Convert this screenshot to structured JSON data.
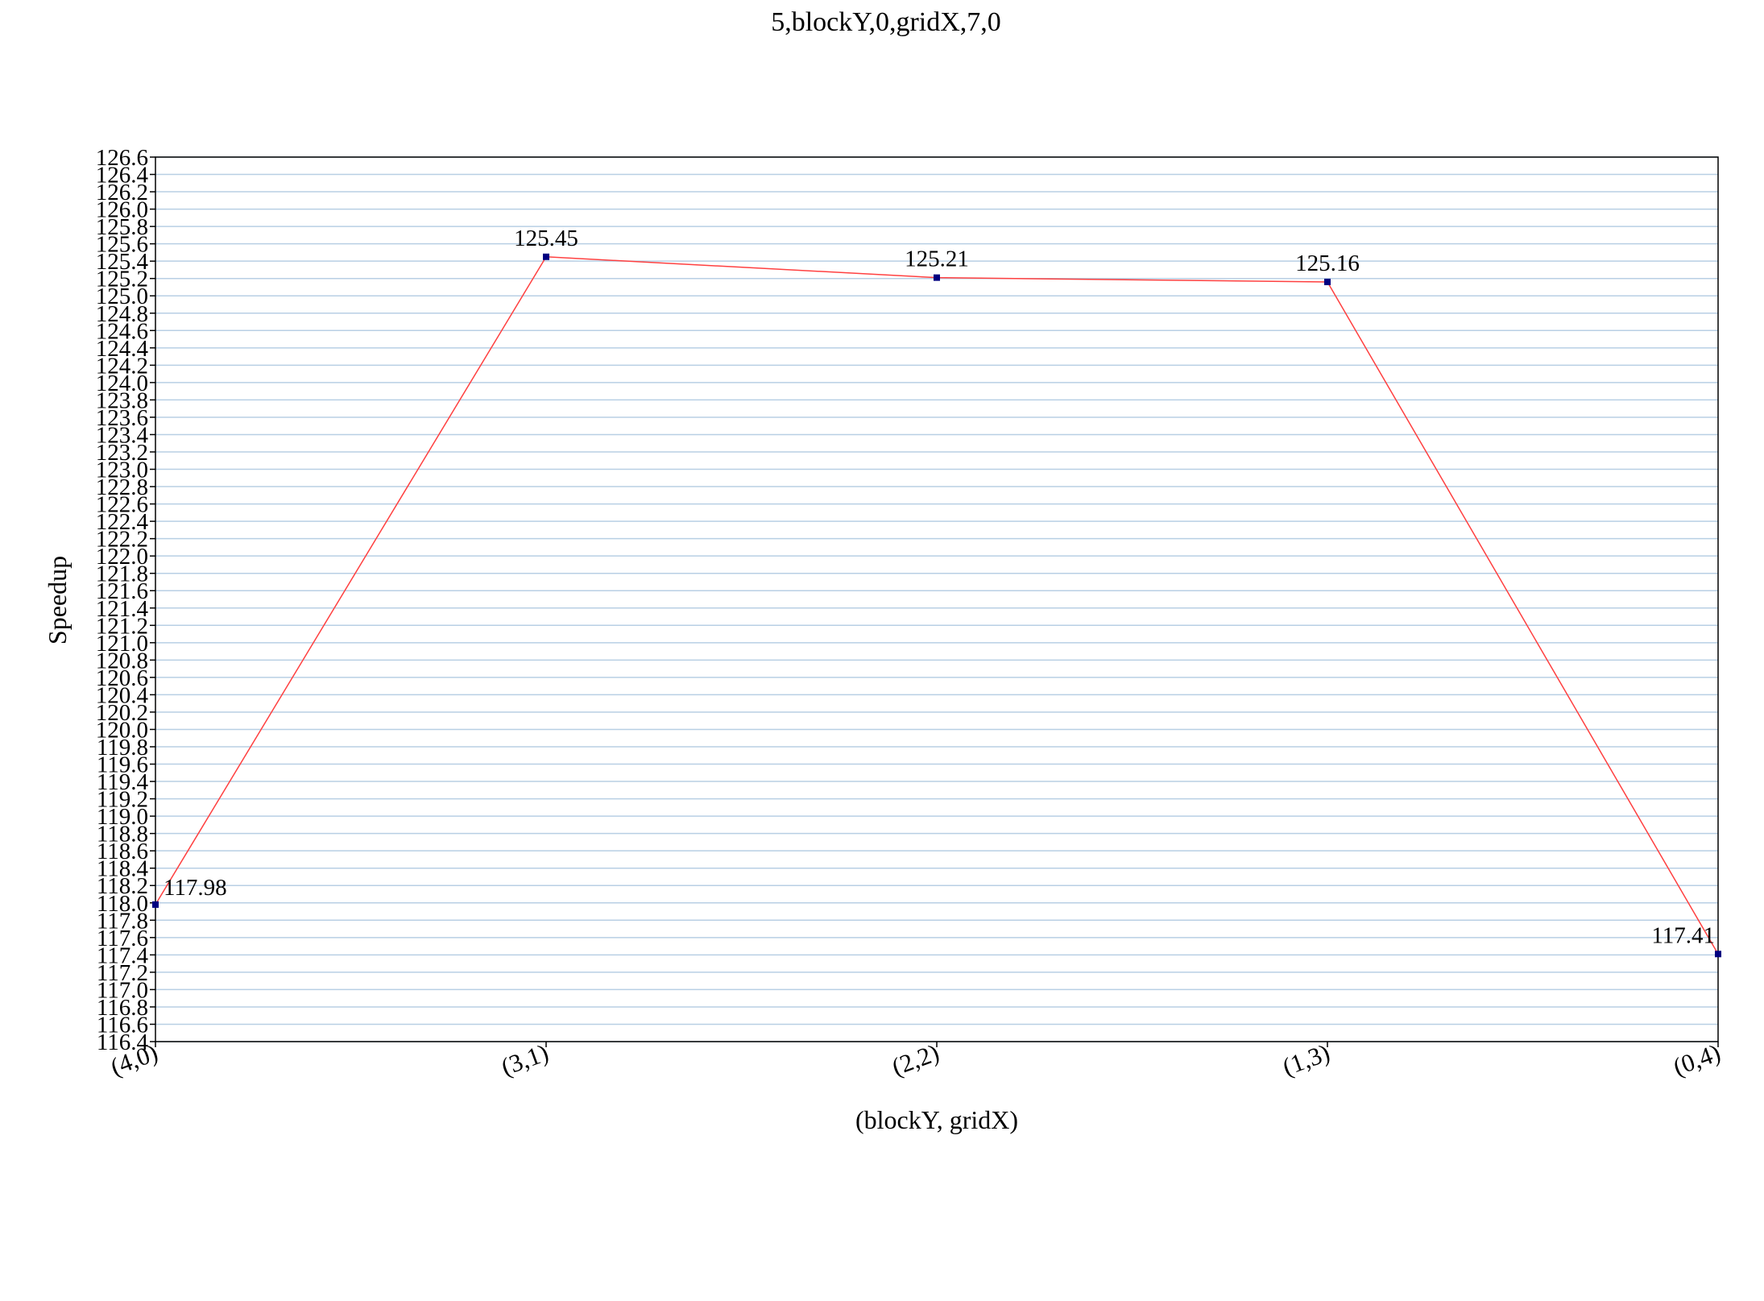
{
  "chart_data": {
    "type": "line",
    "title": "5,blockY,0,gridX,7,0",
    "xlabel": "(blockY, gridX)",
    "ylabel": "Speedup",
    "categories": [
      "(4,0)",
      "(3,1)",
      "(2,2)",
      "(1,3)",
      "(0,4)"
    ],
    "series": [
      {
        "values": [
          117.98,
          125.45,
          125.21,
          125.16,
          117.41
        ],
        "color": "#ff4040",
        "marker_color": "#000080"
      }
    ],
    "data_labels": [
      "117.98",
      "125.45",
      "125.21",
      "125.16",
      "117.41"
    ],
    "ylim": [
      116.4,
      126.6
    ],
    "ytick_step": 0.2,
    "yticks": [
      "116.4",
      "116.6",
      "116.8",
      "117.0",
      "117.2",
      "117.4",
      "117.6",
      "117.8",
      "118.0",
      "118.2",
      "118.4",
      "118.6",
      "118.8",
      "119.0",
      "119.2",
      "119.4",
      "119.6",
      "119.8",
      "120.0",
      "120.2",
      "120.4",
      "120.6",
      "120.8",
      "121.0",
      "121.2",
      "121.4",
      "121.6",
      "121.8",
      "122.0",
      "122.2",
      "122.4",
      "122.6",
      "122.8",
      "123.0",
      "123.2",
      "123.4",
      "123.6",
      "123.8",
      "124.0",
      "124.2",
      "124.4",
      "124.6",
      "124.8",
      "125.0",
      "125.2",
      "125.4",
      "125.6",
      "125.8",
      "126.0",
      "126.2",
      "126.4",
      "126.6"
    ],
    "grid": true,
    "grid_color": "#b8cfe4",
    "legend": "none"
  }
}
